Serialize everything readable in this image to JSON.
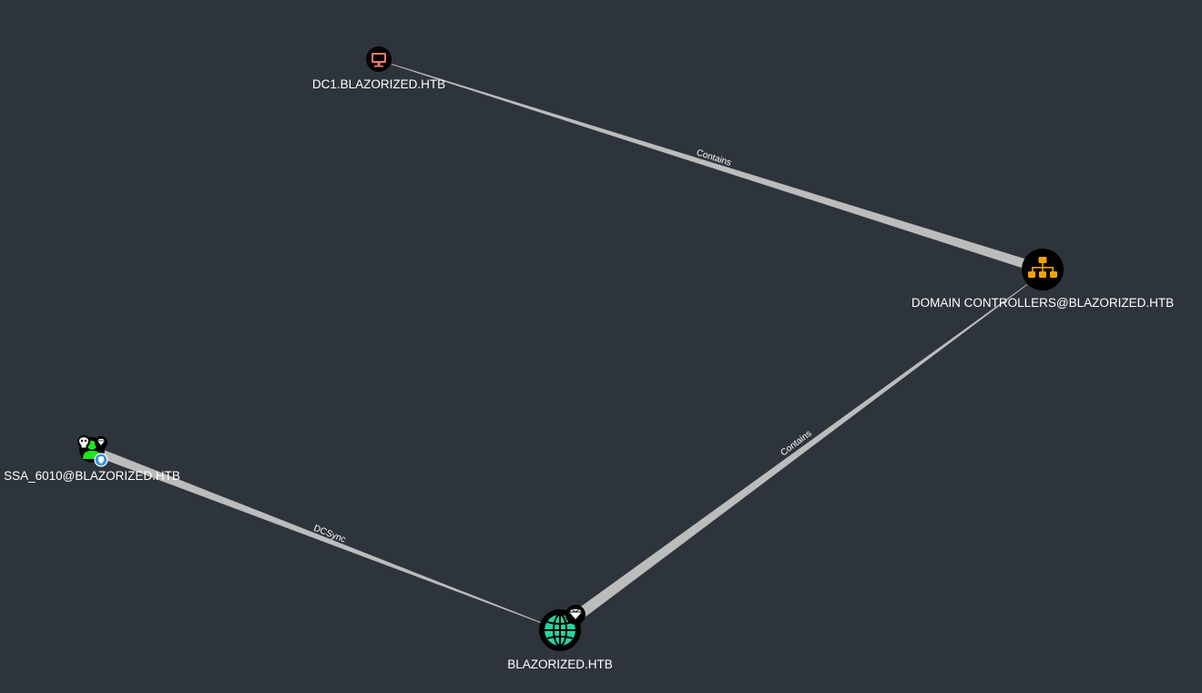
{
  "graph": {
    "background": "#2e343b",
    "nodes": [
      {
        "id": "dc1",
        "label": "DC1.BLAZORIZED.HTB",
        "type": "computer",
        "icon": "monitor-icon",
        "color": "#ef7a6e"
      },
      {
        "id": "domain_controllers",
        "label": "DOMAIN CONTROLLERS@BLAZORIZED.HTB",
        "type": "group",
        "icon": "sitemap-icon",
        "color": "#f2a300"
      },
      {
        "id": "ssa_6010",
        "label": "SSA_6010@BLAZORIZED.HTB",
        "type": "user",
        "icon": "user-icon",
        "color": "#1ce61c",
        "badges": [
          "skull-icon",
          "gem-icon",
          "shield-icon"
        ]
      },
      {
        "id": "blazorized",
        "label": "BLAZORIZED.HTB",
        "type": "domain",
        "icon": "globe-icon",
        "color": "#22d4a0",
        "badges": [
          "gem-icon"
        ]
      }
    ],
    "edges": [
      {
        "from": "domain_controllers",
        "to": "dc1",
        "label": "Contains"
      },
      {
        "from": "blazorized",
        "to": "domain_controllers",
        "label": "Contains"
      },
      {
        "from": "ssa_6010",
        "to": "blazorized",
        "label": "DCSync"
      }
    ]
  }
}
